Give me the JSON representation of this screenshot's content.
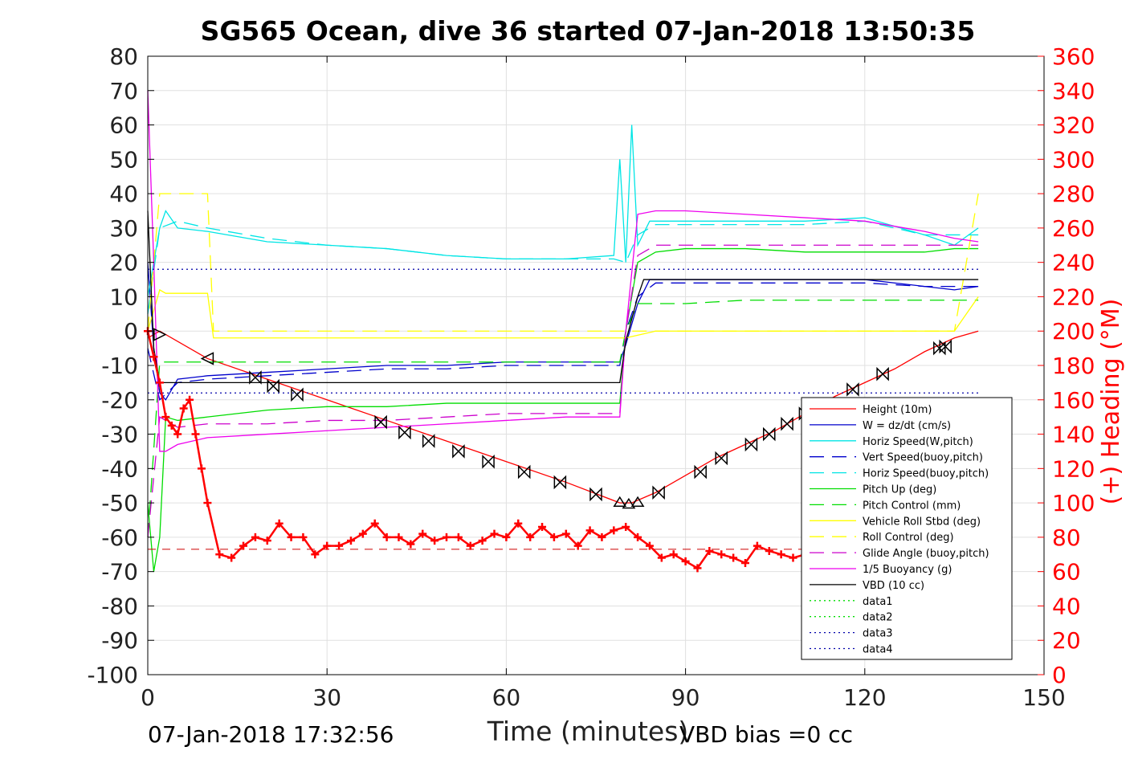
{
  "chart_data": {
    "type": "line",
    "title": "SG565 Ocean, dive 36 started 07-Jan-2018 13:50:35",
    "xlabel": "Time (minutes)",
    "ylabel": "",
    "y2label": "(+) Heading (°M)",
    "xlim": [
      0,
      150
    ],
    "ylim": [
      -100,
      80
    ],
    "y2lim": [
      0,
      360
    ],
    "xticks": [
      0,
      30,
      60,
      90,
      120,
      150
    ],
    "yticks": [
      80,
      70,
      60,
      50,
      40,
      30,
      20,
      10,
      0,
      -10,
      -20,
      -30,
      -40,
      -50,
      -60,
      -70,
      -80,
      -90,
      -100
    ],
    "y2ticks": [
      360,
      340,
      320,
      300,
      280,
      260,
      240,
      220,
      200,
      180,
      160,
      140,
      120,
      100,
      80,
      60,
      40,
      20,
      0
    ],
    "grid": true,
    "legend_position": "lower-right",
    "colors": {
      "height": "#ff0000",
      "w": "#0000cc",
      "horiz": "#00e5e5",
      "vert_buoy": "#0000cc",
      "pitch": "#00dd00",
      "roll": "#ffff00",
      "glide": "#cc00cc",
      "buoyancy": "#ee00ee",
      "vbd": "#000000",
      "heading": "#ff0000",
      "ref_blue": "#0000aa"
    },
    "series": [
      {
        "name": "Height (10m)",
        "style": "solid",
        "color": "#ff0000",
        "x": [
          0,
          2,
          10,
          20,
          30,
          40,
          50,
          60,
          70,
          79,
          81,
          85,
          90,
          95,
          100,
          105,
          110,
          115,
          120,
          125,
          130,
          135,
          139
        ],
        "y": [
          -2,
          0,
          -8,
          -14,
          -20,
          -26,
          -32,
          -38,
          -44,
          -50,
          -50,
          -47,
          -42,
          -37,
          -33,
          -29,
          -24,
          -19,
          -15,
          -11,
          -6,
          -2,
          0
        ]
      },
      {
        "name": "W = dz/dt (cm/s)",
        "style": "solid",
        "color": "#0000cc",
        "x": [
          0,
          1,
          2,
          3,
          5,
          10,
          20,
          30,
          40,
          50,
          60,
          70,
          79,
          80,
          82,
          84,
          90,
          100,
          110,
          120,
          130,
          135,
          139
        ],
        "y": [
          20,
          -5,
          -18,
          -20,
          -14,
          -13,
          -12,
          -11,
          -10,
          -10,
          -9,
          -9,
          -9,
          -4,
          8,
          15,
          15,
          15,
          15,
          15,
          13,
          12,
          13
        ]
      },
      {
        "name": "Horiz Speed(W,pitch)",
        "style": "solid",
        "color": "#00e5e5",
        "x": [
          0,
          1,
          2,
          3,
          5,
          10,
          20,
          30,
          40,
          50,
          60,
          70,
          78,
          79,
          80,
          81,
          82,
          84,
          90,
          100,
          110,
          120,
          130,
          135,
          139
        ],
        "y": [
          10,
          20,
          30,
          35,
          30,
          29,
          26,
          25,
          24,
          22,
          21,
          21,
          22,
          50,
          20,
          60,
          25,
          32,
          32,
          32,
          32,
          33,
          28,
          25,
          30
        ]
      },
      {
        "name": "Vert Speed(buoy,pitch)",
        "style": "dashed",
        "color": "#0000cc",
        "x": [
          0,
          2,
          5,
          10,
          20,
          30,
          40,
          50,
          60,
          70,
          79,
          80,
          82,
          85,
          90,
          100,
          110,
          120,
          130,
          139
        ],
        "y": [
          -5,
          -20,
          -15,
          -14,
          -13,
          -12,
          -11,
          -11,
          -10,
          -10,
          -10,
          0,
          10,
          14,
          14,
          14,
          14,
          14,
          13,
          13
        ]
      },
      {
        "name": "Horiz Speed(buoy,pitch)",
        "style": "dashed",
        "color": "#00e5e5",
        "x": [
          0,
          2,
          5,
          10,
          20,
          30,
          40,
          50,
          60,
          70,
          78,
          80,
          82,
          85,
          90,
          100,
          110,
          120,
          130,
          139
        ],
        "y": [
          5,
          30,
          32,
          30,
          27,
          25,
          24,
          22,
          21,
          21,
          21,
          20,
          28,
          31,
          31,
          31,
          31,
          32,
          28,
          28
        ]
      },
      {
        "name": "Pitch Up (deg)",
        "style": "solid",
        "color": "#00dd00",
        "x": [
          0,
          1,
          2,
          3,
          5,
          10,
          20,
          30,
          40,
          50,
          60,
          70,
          79,
          80,
          82,
          85,
          90,
          100,
          110,
          120,
          130,
          135,
          139
        ],
        "y": [
          -50,
          -70,
          -60,
          -25,
          -26,
          -25,
          -23,
          -22,
          -22,
          -21,
          -21,
          -21,
          -21,
          0,
          20,
          23,
          24,
          24,
          23,
          23,
          23,
          24,
          24
        ]
      },
      {
        "name": "Pitch Control (mm)",
        "style": "dashed",
        "color": "#00dd00",
        "x": [
          0,
          2,
          5,
          10,
          20,
          30,
          40,
          50,
          60,
          70,
          79,
          80,
          82,
          85,
          90,
          100,
          110,
          120,
          130,
          139
        ],
        "y": [
          -60,
          -9,
          -9,
          -9,
          -9,
          -9,
          -9,
          -9,
          -9,
          -9,
          -9,
          0,
          8,
          8,
          8,
          9,
          9,
          9,
          9,
          9
        ]
      },
      {
        "name": "Vehicle Roll Stbd (deg)",
        "style": "solid",
        "color": "#ffff00",
        "x": [
          0,
          2,
          3,
          10,
          11,
          20,
          30,
          40,
          50,
          60,
          70,
          80,
          85,
          90,
          100,
          110,
          120,
          130,
          135,
          139
        ],
        "y": [
          0,
          12,
          11,
          11,
          -2,
          -2,
          -2,
          -2,
          -2,
          -2,
          -2,
          -2,
          0,
          0,
          0,
          0,
          0,
          0,
          0,
          10
        ]
      },
      {
        "name": "Roll Control (deg)",
        "style": "dashed",
        "color": "#ffff00",
        "x": [
          0,
          2,
          3,
          10,
          11,
          20,
          30,
          40,
          50,
          60,
          70,
          80,
          85,
          90,
          100,
          110,
          120,
          130,
          135,
          139
        ],
        "y": [
          0,
          40,
          40,
          40,
          0,
          0,
          0,
          0,
          0,
          0,
          0,
          0,
          0,
          0,
          0,
          0,
          0,
          0,
          0,
          40
        ]
      },
      {
        "name": "Glide Angle (buoy,pitch)",
        "style": "dashed",
        "color": "#cc00cc",
        "x": [
          0,
          2,
          5,
          10,
          20,
          30,
          40,
          50,
          60,
          70,
          79,
          80,
          82,
          85,
          90,
          100,
          110,
          120,
          130,
          139
        ],
        "y": [
          -60,
          -25,
          -28,
          -27,
          -27,
          -26,
          -26,
          -25,
          -24,
          -24,
          -24,
          0,
          22,
          25,
          25,
          25,
          25,
          25,
          25,
          25
        ]
      },
      {
        "name": "1/5 Buoyancy (g)",
        "style": "solid",
        "color": "#ee00ee",
        "x": [
          0,
          1,
          2,
          3,
          5,
          10,
          20,
          30,
          40,
          50,
          60,
          70,
          79,
          80,
          82,
          85,
          90,
          100,
          110,
          120,
          130,
          135,
          139
        ],
        "y": [
          70,
          20,
          -35,
          -35,
          -33,
          -31,
          -30,
          -29,
          -28,
          -27,
          -26,
          -25,
          -25,
          0,
          34,
          35,
          35,
          34,
          33,
          32,
          29,
          27,
          26
        ]
      },
      {
        "name": "VBD (10 cc)",
        "style": "solid",
        "color": "#000000",
        "x": [
          0,
          1,
          2,
          2.5,
          5,
          79,
          80,
          82,
          83,
          139
        ],
        "y": [
          35,
          -5,
          -15,
          -15,
          -15,
          -15,
          -3,
          10,
          15,
          15
        ]
      },
      {
        "name": "data1",
        "style": "dotted",
        "color": "#00dd00",
        "x": [],
        "y": []
      },
      {
        "name": "data2",
        "style": "dotted",
        "color": "#00dd00",
        "x": [],
        "y": []
      },
      {
        "name": "data3",
        "style": "dotted",
        "color": "#0000aa",
        "x": [
          0,
          139
        ],
        "y": [
          18,
          18
        ]
      },
      {
        "name": "data4",
        "style": "dotted",
        "color": "#0000aa",
        "x": [
          0,
          139
        ],
        "y": [
          -18,
          -18
        ]
      }
    ],
    "heading_target": {
      "color": "#cc0000",
      "style": "dashed",
      "x": [
        0,
        139
      ],
      "y2": [
        73,
        73
      ]
    },
    "heading": {
      "color": "#ff0000",
      "marker": "+",
      "x": [
        0,
        1,
        2,
        3,
        4,
        5,
        6,
        7,
        8,
        9,
        10,
        12,
        14,
        16,
        18,
        20,
        22,
        24,
        26,
        28,
        30,
        32,
        34,
        36,
        38,
        40,
        42,
        44,
        46,
        48,
        50,
        52,
        54,
        56,
        58,
        60,
        62,
        64,
        66,
        68,
        70,
        72,
        74,
        76,
        78,
        80,
        82,
        84,
        86,
        88,
        90,
        92,
        94,
        96,
        98,
        100,
        102,
        104,
        106,
        108,
        110
      ],
      "y2": [
        200,
        185,
        170,
        150,
        145,
        140,
        155,
        160,
        140,
        120,
        100,
        70,
        68,
        75,
        80,
        78,
        88,
        80,
        80,
        70,
        75,
        75,
        78,
        82,
        88,
        80,
        80,
        76,
        82,
        78,
        80,
        80,
        75,
        78,
        82,
        80,
        88,
        80,
        86,
        80,
        82,
        75,
        84,
        80,
        84,
        86,
        80,
        75,
        68,
        70,
        66,
        62,
        72,
        70,
        68,
        65,
        75,
        72,
        70,
        68,
        70
      ]
    },
    "vbd_markers": {
      "x": [
        2,
        10,
        18,
        21,
        25,
        39,
        43,
        47,
        52,
        57,
        63,
        69,
        75,
        79,
        80.5,
        82,
        85.5,
        92.5,
        96,
        101,
        104,
        107,
        110,
        118,
        123,
        132.5,
        133.5
      ],
      "y": [
        -1,
        -8,
        -13.5,
        -16,
        -18.5,
        -26.5,
        -29.5,
        -32,
        -35,
        -38,
        -41,
        -44,
        -47.5,
        -50,
        -50.5,
        -50,
        -47,
        -41,
        -37,
        -33,
        -30,
        -27,
        -24,
        -17,
        -12.5,
        -5,
        -4.5
      ],
      "symbols": [
        "tri-right",
        "tri-left",
        "bowtie",
        "bowtie",
        "bowtie",
        "bowtie",
        "bowtie",
        "bowtie",
        "bowtie",
        "bowtie",
        "bowtie",
        "bowtie",
        "bowtie",
        "tri-up",
        "tri-up",
        "tri-up",
        "bowtie",
        "bowtie",
        "bowtie",
        "bowtie",
        "bowtie",
        "bowtie",
        "bowtie",
        "bowtie",
        "bowtie",
        "bowtie",
        "bowtie"
      ]
    }
  },
  "footer": {
    "timestamp": "07-Jan-2018 17:32:56",
    "vbd_bias": "VBD bias =0 cc"
  }
}
